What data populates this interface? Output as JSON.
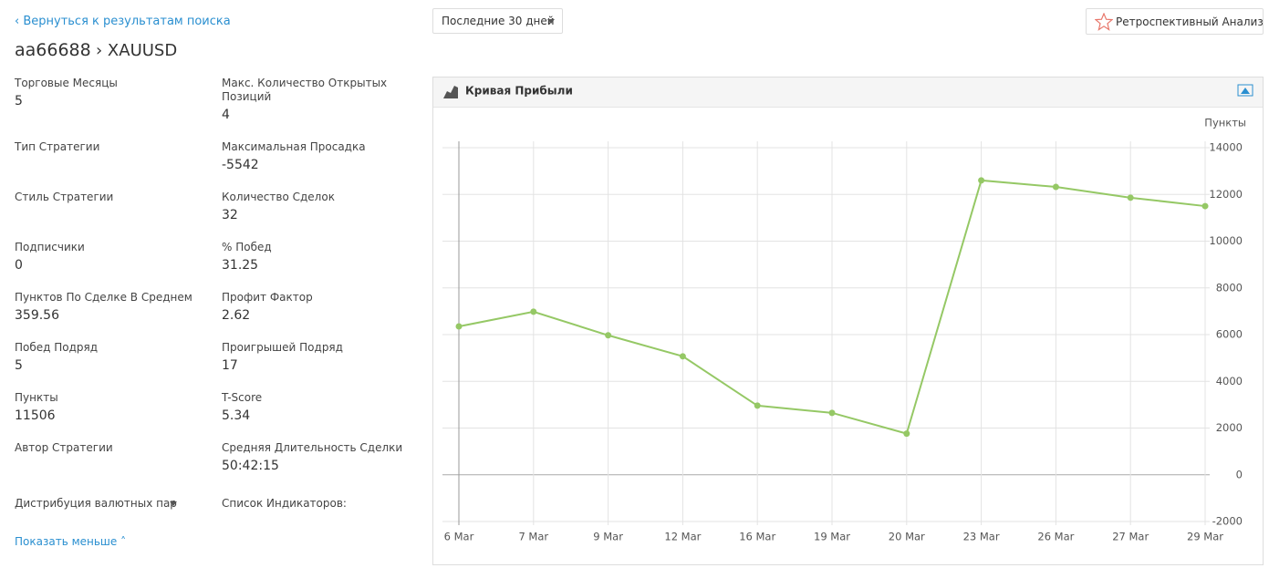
{
  "back_link": "‹ Вернуться к результатам поиска",
  "account": "aa66688",
  "symbol": "› XAUUSD",
  "period": "Последние 30 дней",
  "retro_button": "Ретроспективный Анализ",
  "stats_left": [
    {
      "label": "Торговые Месяцы",
      "value": "5"
    },
    {
      "label": "Тип Стратегии"
    },
    {
      "label": "Стиль Стратегии"
    },
    {
      "label": "Подписчики",
      "value": "0"
    },
    {
      "label": "Пунктов По Сделке В Среднем",
      "value": "359.56"
    },
    {
      "label": "Побед Подряд",
      "value": "5"
    },
    {
      "label": "Пункты",
      "value": "11506"
    },
    {
      "label": "Автор Стратегии"
    },
    {
      "label": "Дистрибуция валютных пар"
    }
  ],
  "stats_right": [
    {
      "label": "Макс. Количество Открытых Позиций",
      "value": "4"
    },
    {
      "label": "Максимальная Просадка",
      "value": "-5542"
    },
    {
      "label": "Количество Сделок",
      "value": "32"
    },
    {
      "label": "% Побед",
      "value": "31.25"
    },
    {
      "label": "Профит Фактор",
      "value": "2.62"
    },
    {
      "label": "Проигрышей Подряд",
      "value": "17"
    },
    {
      "label": "T-Score",
      "value": "5.34"
    },
    {
      "label": "Средняя Длительность Сделки",
      "value": "50:42:15"
    },
    {
      "label": "Список Индикаторов:"
    }
  ],
  "show_less": "Показать меньше",
  "chart_data": {
    "type": "line",
    "title": "Кривая Прибыли",
    "y_axis_label": "Пункты",
    "categories": [
      "6 Mar",
      "7 Mar",
      "9 Mar",
      "12 Mar",
      "16 Mar",
      "19 Mar",
      "20 Mar",
      "23 Mar",
      "26 Mar",
      "27 Mar",
      "29 Mar"
    ],
    "values": [
      6350,
      6980,
      5970,
      5070,
      2960,
      2650,
      1760,
      12600,
      12320,
      11860,
      11500
    ],
    "color": "#95c865",
    "ylim": [
      -2000,
      14000
    ],
    "yticks": [
      -2000,
      0,
      2000,
      4000,
      6000,
      8000,
      10000,
      12000,
      14000
    ],
    "grid": true,
    "y_axis_side": "right"
  }
}
